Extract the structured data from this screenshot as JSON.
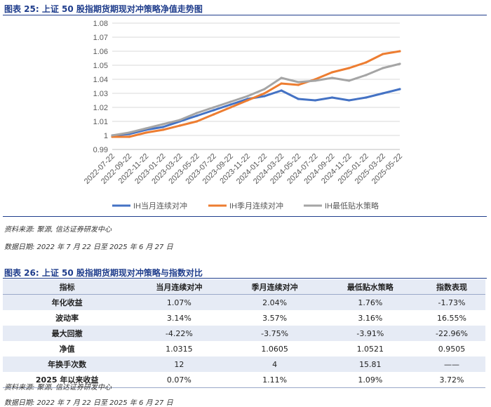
{
  "figure25": {
    "title": "图表 25:  上证 50 股指期货期现对冲策略净值走势图",
    "source": "资料来源:  聚源,  信达证券研发中心",
    "date_range": "数据日期:  2022 年 7 月 22 日至 2025 年 6 月 27 日"
  },
  "chart_data": {
    "type": "line",
    "title": "",
    "xlabel": "",
    "ylabel": "",
    "ylim": [
      0.99,
      1.08
    ],
    "yticks": [
      "0.99",
      "1",
      "1.01",
      "1.02",
      "1.03",
      "1.04",
      "1.05",
      "1.06",
      "1.07",
      "1.08"
    ],
    "x": [
      "2022-07-22",
      "2022-09-22",
      "2022-11-22",
      "2023-01-22",
      "2023-03-22",
      "2023-05-22",
      "2023-07-22",
      "2023-09-22",
      "2023-11-22",
      "2024-01-22",
      "2024-03-22",
      "2024-05-22",
      "2024-07-22",
      "2024-09-22",
      "2024-11-22",
      "2025-01-22",
      "2025-03-22",
      "2025-05-22"
    ],
    "legend_position": "bottom",
    "grid": true,
    "series": [
      {
        "name": "IH当月连续对冲",
        "color": "#4472c4",
        "values": [
          1.0,
          1.001,
          1.004,
          1.006,
          1.01,
          1.014,
          1.018,
          1.022,
          1.026,
          1.028,
          1.032,
          1.026,
          1.025,
          1.027,
          1.025,
          1.027,
          1.03,
          1.033
        ]
      },
      {
        "name": "IH季月连续对冲",
        "color": "#ed7d31",
        "values": [
          0.999,
          0.999,
          1.002,
          1.004,
          1.007,
          1.01,
          1.015,
          1.02,
          1.025,
          1.03,
          1.037,
          1.036,
          1.04,
          1.045,
          1.048,
          1.052,
          1.058,
          1.06
        ]
      },
      {
        "name": "IH最低贴水策略",
        "color": "#a5a5a5",
        "values": [
          1.0,
          1.002,
          1.005,
          1.008,
          1.011,
          1.016,
          1.02,
          1.024,
          1.028,
          1.033,
          1.041,
          1.038,
          1.039,
          1.041,
          1.039,
          1.043,
          1.048,
          1.051
        ]
      }
    ]
  },
  "figure26": {
    "title": "图表 26:  上证 50 股指期货期现对冲策略与指数对比",
    "headers": [
      "指标",
      "当月连续对冲",
      "季月连续对冲",
      "最低贴水策略",
      "指数表现"
    ],
    "rows": [
      [
        "年化收益",
        "1.07%",
        "2.04%",
        "1.76%",
        "-1.73%"
      ],
      [
        "波动率",
        "3.14%",
        "3.57%",
        "3.16%",
        "16.55%"
      ],
      [
        "最大回撤",
        "-4.22%",
        "-3.75%",
        "-3.91%",
        "-22.96%"
      ],
      [
        "净值",
        "1.0315",
        "1.0605",
        "1.0521",
        "0.9505"
      ],
      [
        "年换手次数",
        "12",
        "4",
        "15.81",
        "——"
      ],
      [
        "2025 年以来收益",
        "0.07%",
        "1.11%",
        "1.09%",
        "3.72%"
      ]
    ],
    "source": "资料来源:  聚源,  信达证券研发中心",
    "date_range": "数据日期:  2022 年 7 月 22 日至 2025 年 6 月 27 日"
  }
}
